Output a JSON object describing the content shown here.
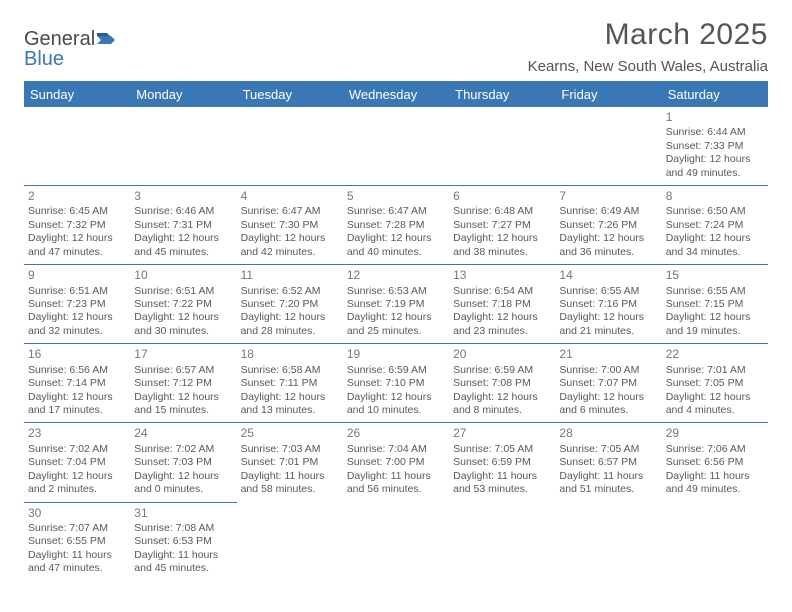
{
  "logo": {
    "part1": "General",
    "part2": "Blue"
  },
  "title": "March 2025",
  "subtitle": "Kearns, New South Wales, Australia",
  "colors": {
    "brand": "#3a78b5",
    "headerText": "#ffffff",
    "bodyText": "#595959",
    "titleText": "#555555",
    "dayNum": "#777777",
    "background": "#ffffff"
  },
  "typography": {
    "title_fontsize": 30,
    "subtitle_fontsize": 15,
    "th_fontsize": 13,
    "cell_fontsize": 10.5,
    "daynum_fontsize": 12
  },
  "columns": [
    "Sunday",
    "Monday",
    "Tuesday",
    "Wednesday",
    "Thursday",
    "Friday",
    "Saturday"
  ],
  "weeks": [
    [
      null,
      null,
      null,
      null,
      null,
      null,
      {
        "n": "1",
        "sr": "Sunrise: 6:44 AM",
        "ss": "Sunset: 7:33 PM",
        "d1": "Daylight: 12 hours",
        "d2": "and 49 minutes."
      }
    ],
    [
      {
        "n": "2",
        "sr": "Sunrise: 6:45 AM",
        "ss": "Sunset: 7:32 PM",
        "d1": "Daylight: 12 hours",
        "d2": "and 47 minutes."
      },
      {
        "n": "3",
        "sr": "Sunrise: 6:46 AM",
        "ss": "Sunset: 7:31 PM",
        "d1": "Daylight: 12 hours",
        "d2": "and 45 minutes."
      },
      {
        "n": "4",
        "sr": "Sunrise: 6:47 AM",
        "ss": "Sunset: 7:30 PM",
        "d1": "Daylight: 12 hours",
        "d2": "and 42 minutes."
      },
      {
        "n": "5",
        "sr": "Sunrise: 6:47 AM",
        "ss": "Sunset: 7:28 PM",
        "d1": "Daylight: 12 hours",
        "d2": "and 40 minutes."
      },
      {
        "n": "6",
        "sr": "Sunrise: 6:48 AM",
        "ss": "Sunset: 7:27 PM",
        "d1": "Daylight: 12 hours",
        "d2": "and 38 minutes."
      },
      {
        "n": "7",
        "sr": "Sunrise: 6:49 AM",
        "ss": "Sunset: 7:26 PM",
        "d1": "Daylight: 12 hours",
        "d2": "and 36 minutes."
      },
      {
        "n": "8",
        "sr": "Sunrise: 6:50 AM",
        "ss": "Sunset: 7:24 PM",
        "d1": "Daylight: 12 hours",
        "d2": "and 34 minutes."
      }
    ],
    [
      {
        "n": "9",
        "sr": "Sunrise: 6:51 AM",
        "ss": "Sunset: 7:23 PM",
        "d1": "Daylight: 12 hours",
        "d2": "and 32 minutes."
      },
      {
        "n": "10",
        "sr": "Sunrise: 6:51 AM",
        "ss": "Sunset: 7:22 PM",
        "d1": "Daylight: 12 hours",
        "d2": "and 30 minutes."
      },
      {
        "n": "11",
        "sr": "Sunrise: 6:52 AM",
        "ss": "Sunset: 7:20 PM",
        "d1": "Daylight: 12 hours",
        "d2": "and 28 minutes."
      },
      {
        "n": "12",
        "sr": "Sunrise: 6:53 AM",
        "ss": "Sunset: 7:19 PM",
        "d1": "Daylight: 12 hours",
        "d2": "and 25 minutes."
      },
      {
        "n": "13",
        "sr": "Sunrise: 6:54 AM",
        "ss": "Sunset: 7:18 PM",
        "d1": "Daylight: 12 hours",
        "d2": "and 23 minutes."
      },
      {
        "n": "14",
        "sr": "Sunrise: 6:55 AM",
        "ss": "Sunset: 7:16 PM",
        "d1": "Daylight: 12 hours",
        "d2": "and 21 minutes."
      },
      {
        "n": "15",
        "sr": "Sunrise: 6:55 AM",
        "ss": "Sunset: 7:15 PM",
        "d1": "Daylight: 12 hours",
        "d2": "and 19 minutes."
      }
    ],
    [
      {
        "n": "16",
        "sr": "Sunrise: 6:56 AM",
        "ss": "Sunset: 7:14 PM",
        "d1": "Daylight: 12 hours",
        "d2": "and 17 minutes."
      },
      {
        "n": "17",
        "sr": "Sunrise: 6:57 AM",
        "ss": "Sunset: 7:12 PM",
        "d1": "Daylight: 12 hours",
        "d2": "and 15 minutes."
      },
      {
        "n": "18",
        "sr": "Sunrise: 6:58 AM",
        "ss": "Sunset: 7:11 PM",
        "d1": "Daylight: 12 hours",
        "d2": "and 13 minutes."
      },
      {
        "n": "19",
        "sr": "Sunrise: 6:59 AM",
        "ss": "Sunset: 7:10 PM",
        "d1": "Daylight: 12 hours",
        "d2": "and 10 minutes."
      },
      {
        "n": "20",
        "sr": "Sunrise: 6:59 AM",
        "ss": "Sunset: 7:08 PM",
        "d1": "Daylight: 12 hours",
        "d2": "and 8 minutes."
      },
      {
        "n": "21",
        "sr": "Sunrise: 7:00 AM",
        "ss": "Sunset: 7:07 PM",
        "d1": "Daylight: 12 hours",
        "d2": "and 6 minutes."
      },
      {
        "n": "22",
        "sr": "Sunrise: 7:01 AM",
        "ss": "Sunset: 7:05 PM",
        "d1": "Daylight: 12 hours",
        "d2": "and 4 minutes."
      }
    ],
    [
      {
        "n": "23",
        "sr": "Sunrise: 7:02 AM",
        "ss": "Sunset: 7:04 PM",
        "d1": "Daylight: 12 hours",
        "d2": "and 2 minutes."
      },
      {
        "n": "24",
        "sr": "Sunrise: 7:02 AM",
        "ss": "Sunset: 7:03 PM",
        "d1": "Daylight: 12 hours",
        "d2": "and 0 minutes."
      },
      {
        "n": "25",
        "sr": "Sunrise: 7:03 AM",
        "ss": "Sunset: 7:01 PM",
        "d1": "Daylight: 11 hours",
        "d2": "and 58 minutes."
      },
      {
        "n": "26",
        "sr": "Sunrise: 7:04 AM",
        "ss": "Sunset: 7:00 PM",
        "d1": "Daylight: 11 hours",
        "d2": "and 56 minutes."
      },
      {
        "n": "27",
        "sr": "Sunrise: 7:05 AM",
        "ss": "Sunset: 6:59 PM",
        "d1": "Daylight: 11 hours",
        "d2": "and 53 minutes."
      },
      {
        "n": "28",
        "sr": "Sunrise: 7:05 AM",
        "ss": "Sunset: 6:57 PM",
        "d1": "Daylight: 11 hours",
        "d2": "and 51 minutes."
      },
      {
        "n": "29",
        "sr": "Sunrise: 7:06 AM",
        "ss": "Sunset: 6:56 PM",
        "d1": "Daylight: 11 hours",
        "d2": "and 49 minutes."
      }
    ],
    [
      {
        "n": "30",
        "sr": "Sunrise: 7:07 AM",
        "ss": "Sunset: 6:55 PM",
        "d1": "Daylight: 11 hours",
        "d2": "and 47 minutes."
      },
      {
        "n": "31",
        "sr": "Sunrise: 7:08 AM",
        "ss": "Sunset: 6:53 PM",
        "d1": "Daylight: 11 hours",
        "d2": "and 45 minutes."
      },
      null,
      null,
      null,
      null,
      null
    ]
  ]
}
